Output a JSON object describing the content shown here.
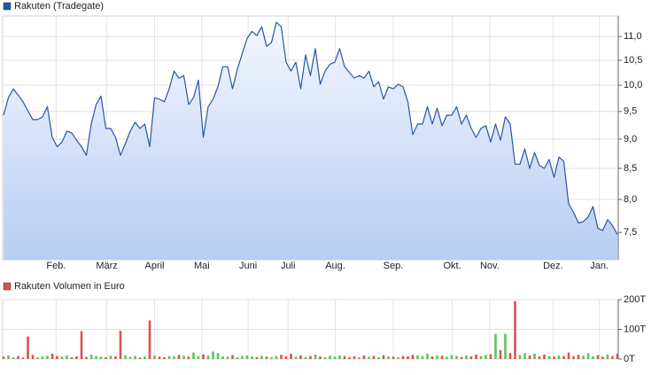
{
  "chart_data": [
    {
      "type": "line",
      "log_scale": true,
      "grid": true,
      "series": [
        {
          "name": "Rakuten (Tradegate)",
          "color": "#2757a6",
          "values": [
            9.43,
            9.76,
            9.93,
            9.81,
            9.68,
            9.51,
            9.35,
            9.35,
            9.4,
            9.59,
            9.03,
            8.87,
            8.95,
            9.14,
            9.11,
            8.98,
            8.87,
            8.72,
            9.27,
            9.63,
            9.79,
            9.19,
            9.19,
            9.03,
            8.72,
            8.92,
            9.14,
            9.3,
            9.19,
            9.27,
            8.87,
            9.76,
            9.73,
            9.68,
            9.93,
            10.28,
            10.14,
            10.19,
            9.63,
            9.76,
            10.1,
            9.03,
            9.59,
            9.73,
            9.97,
            10.37,
            10.37,
            9.93,
            10.32,
            10.64,
            10.96,
            11.11,
            11.02,
            11.21,
            10.79,
            10.87,
            11.31,
            11.21,
            10.46,
            10.28,
            10.46,
            9.93,
            10.61,
            10.19,
            10.74,
            10.02,
            10.28,
            10.42,
            10.46,
            10.74,
            10.37,
            10.25,
            10.14,
            10.19,
            10.14,
            10.28,
            9.97,
            10.07,
            9.73,
            9.97,
            9.93,
            10.02,
            9.97,
            9.68,
            9.08,
            9.27,
            9.27,
            9.59,
            9.27,
            9.56,
            9.24,
            9.43,
            9.43,
            9.59,
            9.27,
            9.43,
            9.19,
            9.03,
            9.19,
            9.24,
            8.95,
            9.27,
            8.98,
            9.4,
            9.27,
            8.57,
            8.57,
            8.83,
            8.5,
            8.77,
            8.55,
            8.5,
            8.65,
            8.35,
            8.69,
            8.62,
            7.93,
            7.8,
            7.64,
            7.66,
            7.73,
            7.89,
            7.56,
            7.53,
            7.69,
            7.6,
            7.47
          ]
        }
      ],
      "xlim": [
        0,
        126
      ],
      "xticks": [
        {
          "value": 10.8,
          "label": "Feb."
        },
        {
          "value": 21.2,
          "label": "März"
        },
        {
          "value": 31.0,
          "label": "April"
        },
        {
          "value": 40.7,
          "label": "Mai"
        },
        {
          "value": 50.2,
          "label": "Juni"
        },
        {
          "value": 58.4,
          "label": "Juli"
        },
        {
          "value": 68.1,
          "label": "Aug."
        },
        {
          "value": 80.0,
          "label": "Sep."
        },
        {
          "value": 92.1,
          "label": "Okt."
        },
        {
          "value": 99.8,
          "label": "Nov."
        },
        {
          "value": 112.8,
          "label": "Dez."
        },
        {
          "value": 122.3,
          "label": "Jan."
        }
      ],
      "ylim": [
        7.11,
        11.45
      ],
      "yticks": [
        {
          "value": 7.5,
          "label": "7,5"
        },
        {
          "value": 8,
          "label": "8,0"
        },
        {
          "value": 8.5,
          "label": "8,5"
        },
        {
          "value": 9,
          "label": "9,0"
        },
        {
          "value": 9.5,
          "label": "9,5"
        },
        {
          "value": 10,
          "label": "10,0"
        },
        {
          "value": 10.5,
          "label": "10,5"
        },
        {
          "value": 11,
          "label": "11,0"
        }
      ]
    },
    {
      "type": "bar",
      "grid": true,
      "up_color": "#5cc45a",
      "series": [
        {
          "name": "Rakuten Volumen in Euro",
          "color": "#d9534f",
          "values": [
            8,
            12,
            6,
            10,
            5,
            76,
            14,
            6,
            9,
            11,
            18,
            10,
            8,
            12,
            6,
            9,
            94,
            7,
            15,
            10,
            8,
            6,
            11,
            9,
            95,
            13,
            7,
            10,
            5,
            9,
            130,
            12,
            8,
            6,
            10,
            9,
            14,
            11,
            8,
            22,
            10,
            16,
            12,
            25,
            20,
            9,
            8,
            13,
            6,
            10,
            12,
            9,
            7,
            11,
            8,
            6,
            10,
            14,
            9,
            18,
            8,
            12,
            7,
            10,
            15,
            9,
            6,
            11,
            8,
            12,
            10,
            7,
            9,
            6,
            12,
            8,
            11,
            7,
            13,
            9,
            8,
            6,
            10,
            9,
            14,
            12,
            10,
            18,
            9,
            12,
            11,
            8,
            13,
            10,
            7,
            12,
            9,
            15,
            10,
            14,
            16,
            85,
            30,
            85,
            20,
            195,
            14,
            20,
            12,
            18,
            9,
            15,
            10,
            8,
            12,
            10,
            22,
            9,
            14,
            11,
            20,
            9,
            13,
            8,
            15,
            10,
            18
          ]
        }
      ],
      "ylim": [
        0,
        200
      ],
      "yticks": [
        {
          "value": 0,
          "label": "0T"
        },
        {
          "value": 100,
          "label": "100T"
        },
        {
          "value": 200,
          "label": "200T"
        }
      ]
    }
  ]
}
